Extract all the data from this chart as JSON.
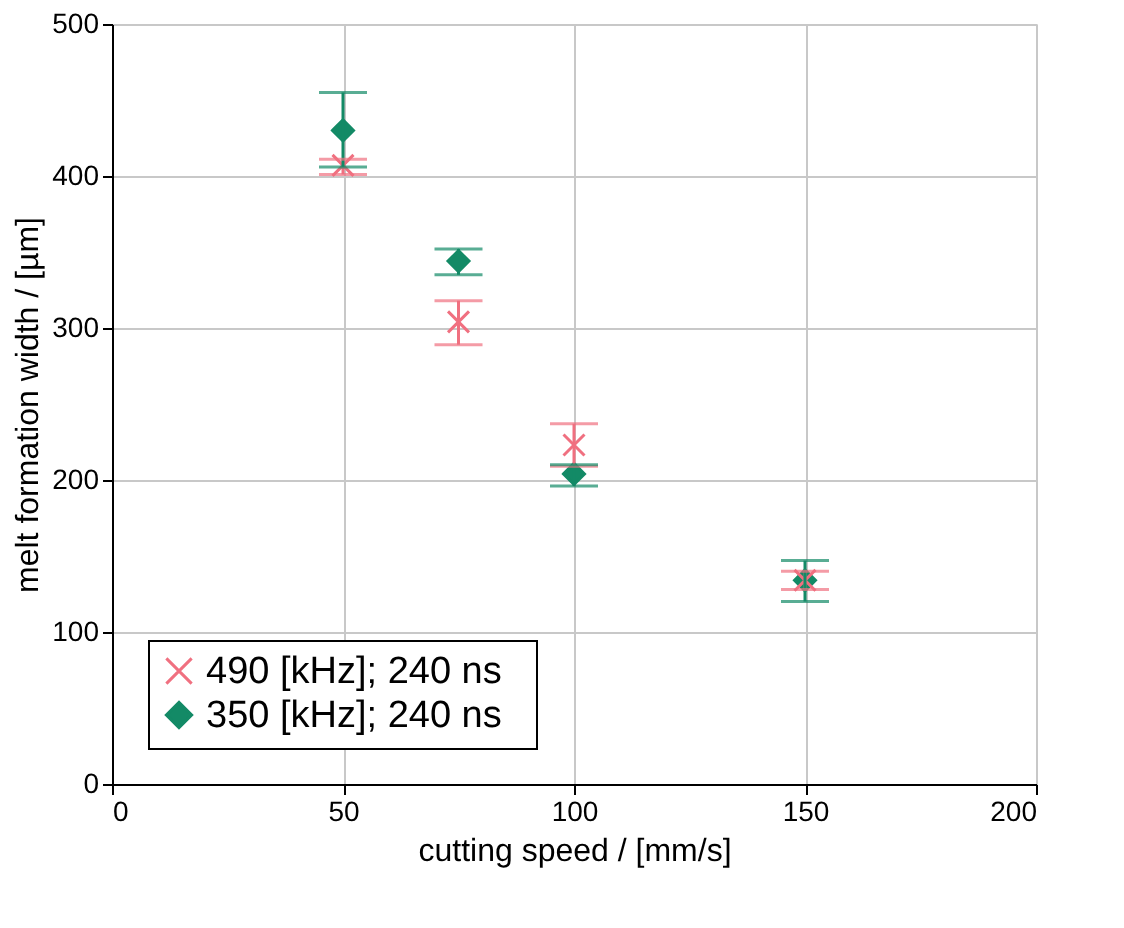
{
  "chart_data": {
    "type": "scatter",
    "xlabel": "cutting speed  /  [mm/s]",
    "ylabel": "melt formation width  /  [µm]",
    "x": [
      50,
      75,
      100,
      150
    ],
    "series": [
      {
        "name": "490   [kHz]; 240 ns",
        "color": "#f07080",
        "marker": "cross",
        "values": [
          407,
          304,
          223,
          134
        ],
        "errors": [
          [
            401,
            411
          ],
          [
            289,
            318
          ],
          [
            209,
            237
          ],
          [
            128,
            140
          ]
        ]
      },
      {
        "name": "350   [kHz]; 240 ns",
        "color": "#138a66",
        "marker": "diamond",
        "values": [
          430,
          344,
          204,
          134
        ],
        "errors": [
          [
            406,
            455
          ],
          [
            335,
            352
          ],
          [
            196,
            210
          ],
          [
            120,
            147
          ]
        ]
      }
    ],
    "xlim": [
      0,
      200
    ],
    "xticks": [
      0,
      50,
      100,
      150,
      200
    ],
    "ylim": [
      0,
      500
    ],
    "yticks": [
      0,
      100,
      200,
      300,
      400,
      500
    ],
    "grid": true,
    "legend": "bottom left"
  }
}
